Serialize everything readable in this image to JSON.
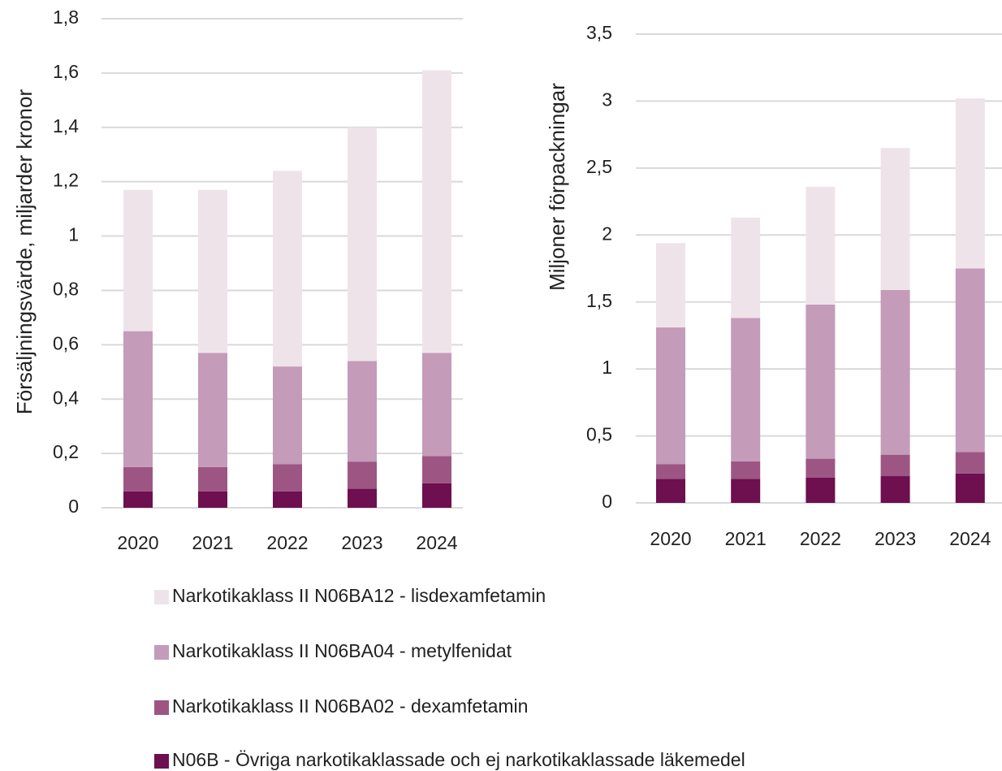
{
  "chart_data": [
    {
      "type": "bar",
      "stacked": true,
      "ylabel": "Försäljningsvärde, miljarder kronor",
      "categories": [
        "2020",
        "2021",
        "2022",
        "2023",
        "2024"
      ],
      "ylim": [
        0,
        1.8
      ],
      "yticks": [
        0,
        {
          "value": 0.2,
          "label": "0,2"
        },
        {
          "value": 0.4,
          "label": "0,4"
        },
        {
          "value": 0.6,
          "label": "0,6"
        },
        {
          "value": 0.8,
          "label": "0,8"
        },
        1,
        {
          "value": 1.2,
          "label": "1,2"
        },
        {
          "value": 1.4,
          "label": "1,4"
        },
        {
          "value": 1.6,
          "label": "1,6"
        },
        {
          "value": 1.8,
          "label": "1,8"
        }
      ],
      "grid": true,
      "series": [
        {
          "name": "N06B - Övriga narkotikaklassade och ej narkotikaklassade läkemedel",
          "color": "#6e0f4f",
          "values": [
            0.06,
            0.06,
            0.06,
            0.07,
            0.09
          ]
        },
        {
          "name": "Narkotikaklass II  N06BA02 - dexamfetamin",
          "color": "#9d5683",
          "values": [
            0.09,
            0.09,
            0.1,
            0.1,
            0.1
          ]
        },
        {
          "name": "Narkotikaklass II  N06BA04 - metylfenidat",
          "color": "#c49bb9",
          "values": [
            0.5,
            0.42,
            0.36,
            0.37,
            0.38
          ]
        },
        {
          "name": "Narkotikaklass II  N06BA12 - lisdexamfetamin",
          "color": "#efe3ea",
          "values": [
            0.52,
            0.6,
            0.72,
            0.86,
            1.04
          ]
        }
      ]
    },
    {
      "type": "bar",
      "stacked": true,
      "ylabel": "Miljoner förpackningar",
      "categories": [
        "2020",
        "2021",
        "2022",
        "2023",
        "2024"
      ],
      "ylim": [
        0,
        3.5
      ],
      "yticks": [
        0,
        {
          "value": 0.5,
          "label": "0,5"
        },
        1,
        {
          "value": 1.5,
          "label": "1,5"
        },
        2,
        {
          "value": 2.5,
          "label": "2,5"
        },
        3,
        {
          "value": 3.5,
          "label": "3,5"
        }
      ],
      "grid": true,
      "series": [
        {
          "values": [
            0.18,
            0.18,
            0.19,
            0.2,
            0.22
          ]
        },
        {
          "values": [
            0.11,
            0.13,
            0.14,
            0.16,
            0.16
          ]
        },
        {
          "values": [
            1.02,
            1.07,
            1.15,
            1.23,
            1.37
          ]
        },
        {
          "values": [
            0.63,
            0.75,
            0.88,
            1.06,
            1.27
          ]
        }
      ]
    }
  ]
}
